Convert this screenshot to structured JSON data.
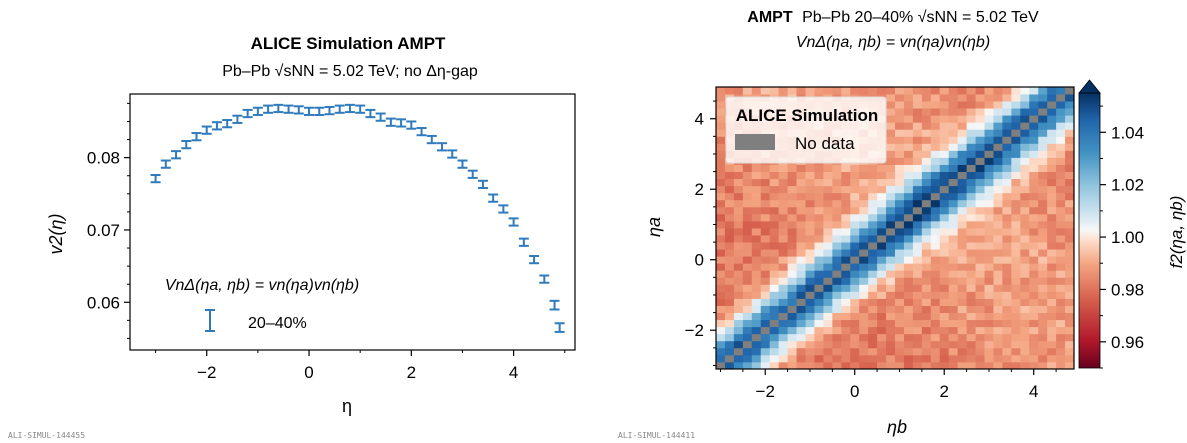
{
  "chart_data": [
    {
      "type": "errorbar",
      "title": "ALICE Simulation AMPT",
      "subtitle": "Pb–Pb  √sNN = 5.02 TeV; no Δη-gap",
      "xlabel": "η",
      "ylabel": "v2(η)",
      "annotation": "VnΔ(ηa, ηb) = vn(ηa)vn(ηb)",
      "legend_label": "20–40%",
      "footer": "ALI-SIMUL-144455",
      "xlim": [
        -3.5,
        5.2
      ],
      "ylim": [
        0.0534,
        0.0888
      ],
      "xticks": [
        "−2",
        "0",
        "2",
        "4"
      ],
      "yticks": [
        "0.06",
        "0.07",
        "0.08"
      ],
      "color": "#2f7bbd",
      "series": [
        {
          "x": [
            -3.0,
            -2.8,
            -2.6,
            -2.4,
            -2.2,
            -2.0,
            -1.8,
            -1.6,
            -1.4,
            -1.2,
            -1.0,
            -0.8,
            -0.6,
            -0.4,
            -0.2,
            0.0,
            0.2,
            0.4,
            0.6,
            0.8,
            1.0,
            1.2,
            1.4,
            1.6,
            1.8,
            2.0,
            2.2,
            2.4,
            2.6,
            2.8,
            3.0,
            3.2,
            3.4,
            3.6,
            3.8,
            4.0,
            4.2,
            4.4,
            4.6,
            4.8
          ],
          "y": [
            0.0771,
            0.0791,
            0.0804,
            0.0818,
            0.0829,
            0.0838,
            0.0844,
            0.0847,
            0.0853,
            0.0861,
            0.0864,
            0.0867,
            0.0868,
            0.0867,
            0.0866,
            0.0864,
            0.0864,
            0.0865,
            0.0867,
            0.0868,
            0.0867,
            0.0861,
            0.0856,
            0.0849,
            0.0848,
            0.0845,
            0.0836,
            0.0825,
            0.0815,
            0.0805,
            0.0791,
            0.0777,
            0.0763,
            0.0744,
            0.0729,
            0.0711,
            0.0683,
            0.0659,
            0.0632,
            0.0596
          ],
          "err": [
            0.0005,
            0.0005,
            0.0005,
            0.0005,
            0.0005,
            0.0005,
            0.0005,
            0.0005,
            0.0005,
            0.0005,
            0.0005,
            0.0005,
            0.0005,
            0.0005,
            0.0005,
            0.0005,
            0.0005,
            0.0005,
            0.0005,
            0.0005,
            0.0005,
            0.0005,
            0.0005,
            0.0005,
            0.0005,
            0.0005,
            0.0005,
            0.0005,
            0.0005,
            0.0005,
            0.0005,
            0.0005,
            0.0005,
            0.0005,
            0.0005,
            0.0005,
            0.0005,
            0.0005,
            0.0005,
            0.0006
          ]
        }
      ],
      "last_point": {
        "x": 4.9,
        "y": 0.0565
      }
    },
    {
      "type": "heatmap",
      "title_bold": "AMPT",
      "title_rest": "Pb–Pb 20–40%  √sNN = 5.02 TeV",
      "subtitle": "VnΔ(ηa, ηb) = vn(ηa)vn(ηb)",
      "xlabel": "ηb",
      "ylabel": "ηa",
      "colorbar_label": "f2(ηa, ηb)",
      "legend_title": "ALICE Simulation",
      "legend_entry": "No data",
      "nodata_color": "#7f7f7f",
      "footer": "ALI-SIMUL-144411",
      "xlim": [
        -3.1,
        4.9
      ],
      "ylim": [
        -3.1,
        4.9
      ],
      "xticks": [
        "−2",
        "0",
        "2",
        "4"
      ],
      "yticks": [
        "−2",
        "0",
        "2",
        "4"
      ],
      "colorbar_range": [
        0.95,
        1.055
      ],
      "colorbar_ticks": [
        "0.96",
        "0.98",
        "1.00",
        "1.02",
        "1.04"
      ],
      "colormap": "RdBu",
      "description_values": {
        "diagonal": "no data",
        "near_diagonal": 1.045,
        "band_width_eta": 0.8,
        "far_from_diagonal": 0.985
      }
    }
  ]
}
